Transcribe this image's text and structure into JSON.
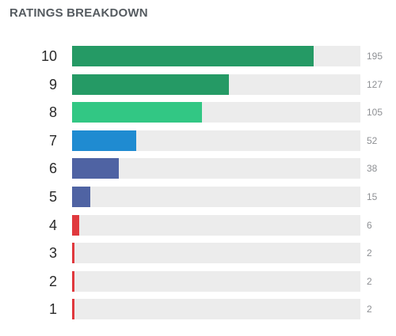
{
  "header": {
    "title": "RATINGS BREAKDOWN"
  },
  "chart_data": {
    "type": "bar",
    "orientation": "horizontal",
    "title": "RATINGS BREAKDOWN",
    "categories": [
      "10",
      "9",
      "8",
      "7",
      "6",
      "5",
      "4",
      "3",
      "2",
      "1"
    ],
    "values": [
      195,
      127,
      105,
      52,
      38,
      15,
      6,
      2,
      2,
      2
    ],
    "value_labels": [
      "195",
      "127",
      "105",
      "52",
      "38",
      "15",
      "6",
      "2",
      "2",
      "2"
    ],
    "xlim": [
      0,
      233
    ],
    "grid": false,
    "legend": "none",
    "bar_colors": [
      "#259a65",
      "#259a65",
      "#32c784",
      "#1f8bd1",
      "#4f63a3",
      "#4f63a3",
      "#e0393e",
      "#e0393e",
      "#e0393e",
      "#e0393e"
    ],
    "track_color": "#ececec"
  }
}
